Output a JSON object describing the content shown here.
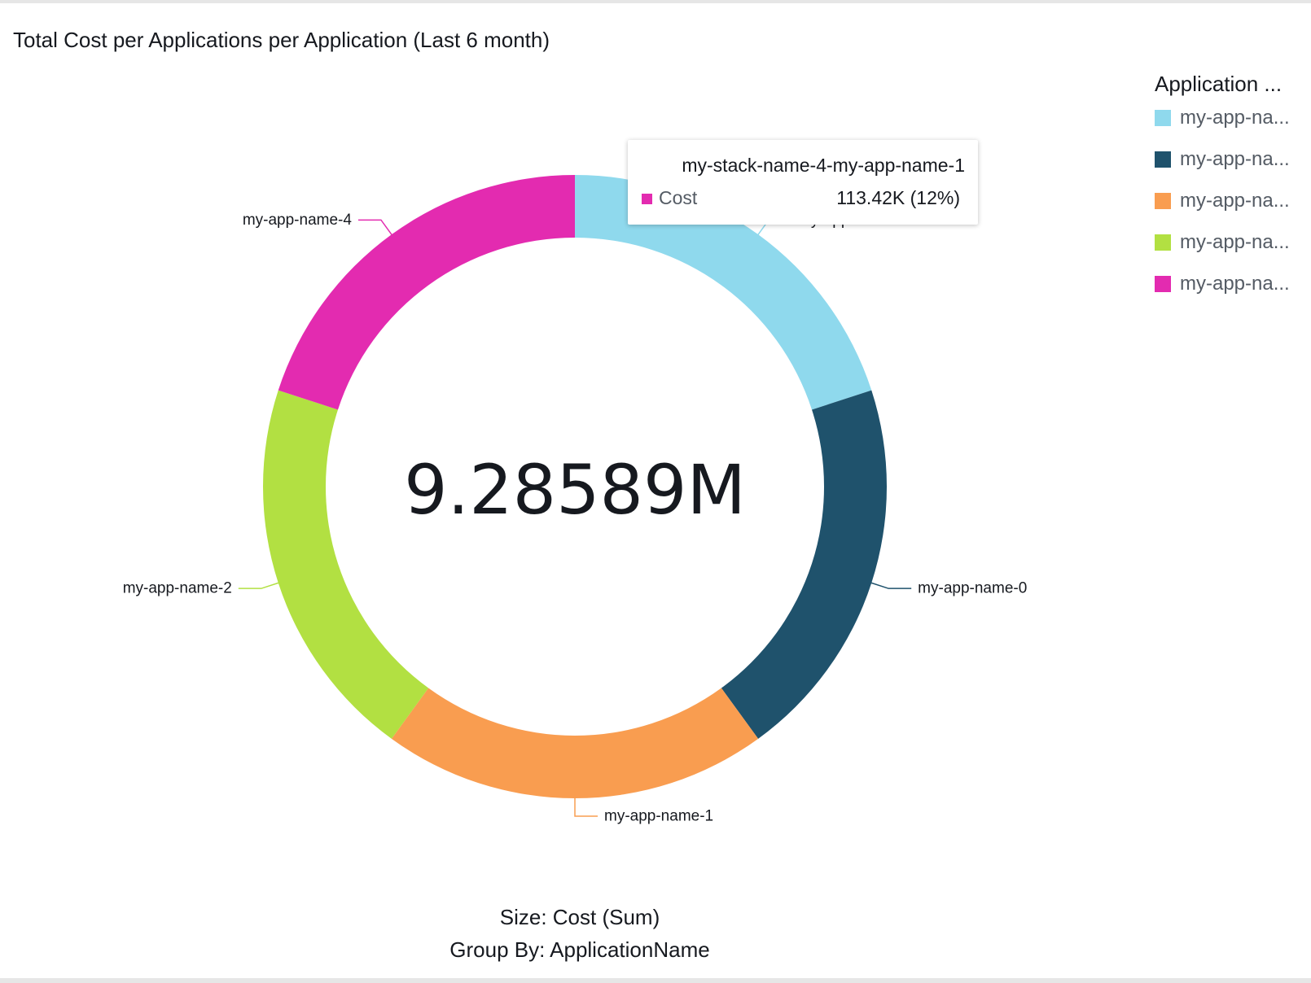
{
  "chart_data": {
    "type": "pie",
    "variant": "donut",
    "title": "Total Cost per Applications per Application (Last 6 month)",
    "center_label": "9.28589M",
    "slices": [
      {
        "name": "my-app-name-3",
        "value": 20,
        "color": "#8fd9ed"
      },
      {
        "name": "my-app-name-0",
        "value": 20,
        "color": "#1f526c"
      },
      {
        "name": "my-app-name-1",
        "value": 20,
        "color": "#f99d50"
      },
      {
        "name": "my-app-name-2",
        "value": 20,
        "color": "#b2e042"
      },
      {
        "name": "my-app-name-4",
        "value": 20,
        "color": "#e32bb0"
      }
    ],
    "legend": {
      "title": "Application ...",
      "position": "right",
      "items": [
        {
          "label": "my-app-na...",
          "color": "#8fd9ed"
        },
        {
          "label": "my-app-na...",
          "color": "#1f526c"
        },
        {
          "label": "my-app-na...",
          "color": "#f99d50"
        },
        {
          "label": "my-app-na...",
          "color": "#b2e042"
        },
        {
          "label": "my-app-na...",
          "color": "#e32bb0"
        }
      ]
    },
    "tooltip": {
      "title": "my-stack-name-4-my-app-name-1",
      "metric": "Cost",
      "value": "113.42K (12%)",
      "swatch_color": "#e32bb0"
    },
    "footer": {
      "size": "Size: Cost (Sum)",
      "group_by": "Group By: ApplicationName"
    }
  }
}
